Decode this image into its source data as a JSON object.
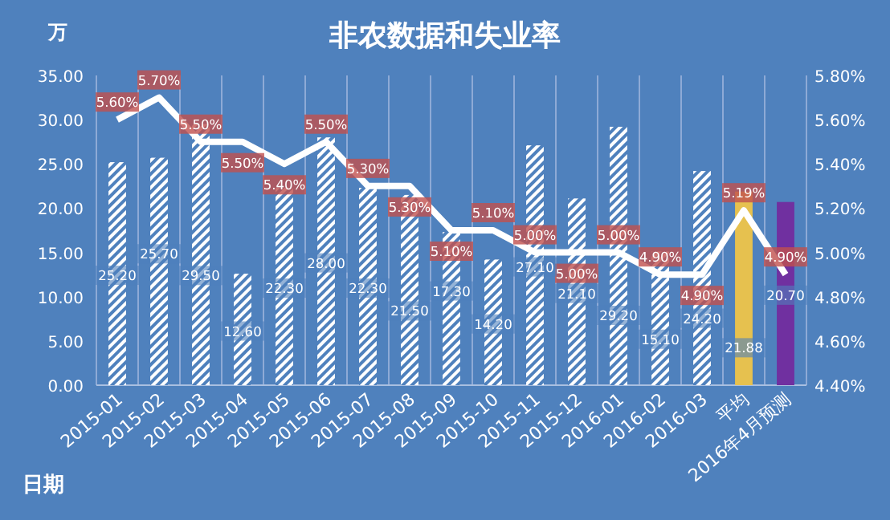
{
  "chart_data": {
    "type": "bar",
    "title": "非农数据和失业率",
    "ylabel": "万",
    "xlabel": "日期",
    "categories": [
      "2015-01",
      "2015-02",
      "2015-03",
      "2015-04",
      "2015-05",
      "2015-06",
      "2015-07",
      "2015-08",
      "2015-09",
      "2015-10",
      "2015-11",
      "2015-12",
      "2016-01",
      "2016-02",
      "2016-03",
      "平均",
      "2016年4月预测"
    ],
    "series": [
      {
        "color": "#ffffff",
        "colors": [
          "#ffffff",
          "#ffffff",
          "#ffffff",
          "#ffffff",
          "#ffffff",
          "#ffffff",
          "#ffffff",
          "#ffffff",
          "#ffffff",
          "#ffffff",
          "#ffffff",
          "#ffffff",
          "#ffffff",
          "#ffffff",
          "#ffffff",
          "#e6c14f",
          "#7030a0"
        ],
        "values": [
          25.2,
          25.7,
          29.5,
          12.6,
          22.3,
          28.0,
          22.3,
          21.5,
          17.3,
          14.2,
          27.1,
          21.1,
          29.2,
          15.1,
          24.2,
          21.88,
          20.7
        ],
        "value_labels": [
          "25.20",
          "25.70",
          "29.50",
          "12.60",
          "22.30",
          "28.00",
          "22.30",
          "21.50",
          "17.30",
          "14.20",
          "27.10",
          "21.10",
          "29.20",
          "15.10",
          "24.20",
          "21.88",
          "20.70"
        ]
      },
      {
        "type": "line",
        "axis": "y2",
        "color": "#ffffff",
        "values": [
          5.6,
          5.7,
          5.5,
          5.5,
          5.4,
          5.5,
          5.3,
          5.3,
          5.1,
          5.1,
          5.0,
          5.0,
          5.0,
          4.9,
          4.9,
          5.19,
          4.9
        ],
        "value_labels": [
          "5.60%",
          "5.70%",
          "5.50%",
          "5.50%",
          "5.40%",
          "5.50%",
          "5.30%",
          "5.30%",
          "5.10%",
          "5.10%",
          "5.00%",
          "5.00%",
          "5.00%",
          "4.90%",
          "4.90%",
          "5.19%",
          "4.90%"
        ]
      }
    ],
    "ylim": [
      0,
      35
    ],
    "yticks": [
      {
        "value": 0,
        "label": "0.00"
      },
      {
        "value": 5,
        "label": "5.00"
      },
      {
        "value": 10,
        "label": "10.00"
      },
      {
        "value": 15,
        "label": "15.00"
      },
      {
        "value": 20,
        "label": "20.00"
      },
      {
        "value": 25,
        "label": "25.00"
      },
      {
        "value": 30,
        "label": "30.00"
      },
      {
        "value": 35,
        "label": "35.00"
      }
    ],
    "y2lim": [
      4.4,
      5.8
    ],
    "y2ticks": [
      {
        "value": 4.4,
        "label": "4.40%"
      },
      {
        "value": 4.6,
        "label": "4.60%"
      },
      {
        "value": 4.8,
        "label": "4.80%"
      },
      {
        "value": 5.0,
        "label": "5.00%"
      },
      {
        "value": 5.2,
        "label": "5.20%"
      },
      {
        "value": 5.4,
        "label": "5.40%"
      },
      {
        "value": 5.6,
        "label": "5.60%"
      },
      {
        "value": 5.8,
        "label": "5.80%"
      }
    ],
    "grid": "x",
    "marker": "none"
  }
}
